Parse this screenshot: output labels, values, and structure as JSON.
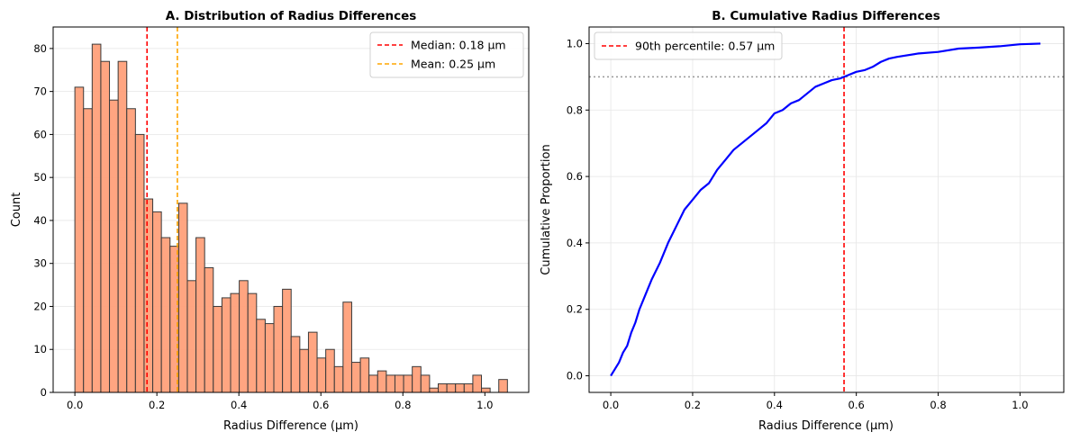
{
  "chart_data": [
    {
      "type": "bar",
      "title": "A. Distribution of Radius Differences",
      "xlabel": "Radius Difference (µm)",
      "ylabel": "Count",
      "xlim": [
        -0.053,
        1.107
      ],
      "ylim": [
        0,
        85
      ],
      "xticks": [
        0.0,
        0.2,
        0.4,
        0.6,
        0.8,
        1.0
      ],
      "xtick_labels": [
        "0.0",
        "0.2",
        "0.4",
        "0.6",
        "0.8",
        "1.0"
      ],
      "yticks": [
        0,
        10,
        20,
        30,
        40,
        50,
        60,
        70,
        80
      ],
      "ytick_labels": [
        "0",
        "10",
        "20",
        "30",
        "40",
        "50",
        "60",
        "70",
        "80"
      ],
      "grid": "y",
      "bin_start": 0.0,
      "bin_width": 0.0211,
      "values": [
        71,
        66,
        81,
        77,
        68,
        77,
        66,
        60,
        45,
        42,
        36,
        34,
        44,
        26,
        36,
        29,
        20,
        22,
        23,
        26,
        23,
        17,
        16,
        20,
        24,
        13,
        10,
        14,
        8,
        10,
        6,
        21,
        7,
        8,
        4,
        5,
        4,
        4,
        4,
        6,
        4,
        1,
        2,
        2,
        2,
        2,
        4,
        1,
        0,
        3
      ],
      "bar_color": "#FFA07A",
      "edge_color": "#000000",
      "reference_lines": [
        {
          "x": 0.176,
          "label": "Median: 0.18 µm",
          "color": "#ff0000"
        },
        {
          "x": 0.25,
          "label": "Mean: 0.25 µm",
          "color": "#ffa500"
        }
      ],
      "legend_position": "top-right"
    },
    {
      "type": "line",
      "title": "B. Cumulative Radius Differences",
      "xlabel": "Radius Difference (µm)",
      "ylabel": "Cumulative Proportion",
      "xlim": [
        -0.053,
        1.107
      ],
      "ylim": [
        -0.05,
        1.05
      ],
      "xticks": [
        0.0,
        0.2,
        0.4,
        0.6,
        0.8,
        1.0
      ],
      "xtick_labels": [
        "0.0",
        "0.2",
        "0.4",
        "0.6",
        "0.8",
        "1.0"
      ],
      "yticks": [
        0.0,
        0.2,
        0.4,
        0.6,
        0.8,
        1.0
      ],
      "ytick_labels": [
        "0.0",
        "0.2",
        "0.4",
        "0.6",
        "0.8",
        "1.0"
      ],
      "grid": "both",
      "series": [
        {
          "color": "#0000ff",
          "x": [
            0.0,
            0.01,
            0.02,
            0.03,
            0.04,
            0.05,
            0.06,
            0.07,
            0.08,
            0.09,
            0.1,
            0.12,
            0.14,
            0.16,
            0.18,
            0.2,
            0.22,
            0.24,
            0.26,
            0.28,
            0.3,
            0.32,
            0.34,
            0.36,
            0.38,
            0.4,
            0.42,
            0.44,
            0.46,
            0.48,
            0.5,
            0.52,
            0.54,
            0.56,
            0.57,
            0.58,
            0.6,
            0.62,
            0.64,
            0.66,
            0.68,
            0.7,
            0.75,
            0.8,
            0.85,
            0.9,
            0.95,
            1.0,
            1.05
          ],
          "y": [
            0.0,
            0.02,
            0.04,
            0.07,
            0.09,
            0.13,
            0.16,
            0.2,
            0.23,
            0.26,
            0.29,
            0.34,
            0.4,
            0.45,
            0.5,
            0.53,
            0.56,
            0.58,
            0.62,
            0.65,
            0.68,
            0.7,
            0.72,
            0.74,
            0.76,
            0.79,
            0.8,
            0.82,
            0.83,
            0.85,
            0.87,
            0.88,
            0.89,
            0.895,
            0.9,
            0.905,
            0.915,
            0.92,
            0.93,
            0.945,
            0.955,
            0.96,
            0.97,
            0.975,
            0.985,
            0.988,
            0.992,
            0.998,
            1.0
          ]
        }
      ],
      "reference_lines": [
        {
          "x": 0.57,
          "label": "90th percentile: 0.57 µm",
          "color": "#ff0000"
        },
        {
          "y": 0.9,
          "color": "#999999",
          "style": "dotted"
        }
      ],
      "legend_position": "top-left"
    }
  ]
}
